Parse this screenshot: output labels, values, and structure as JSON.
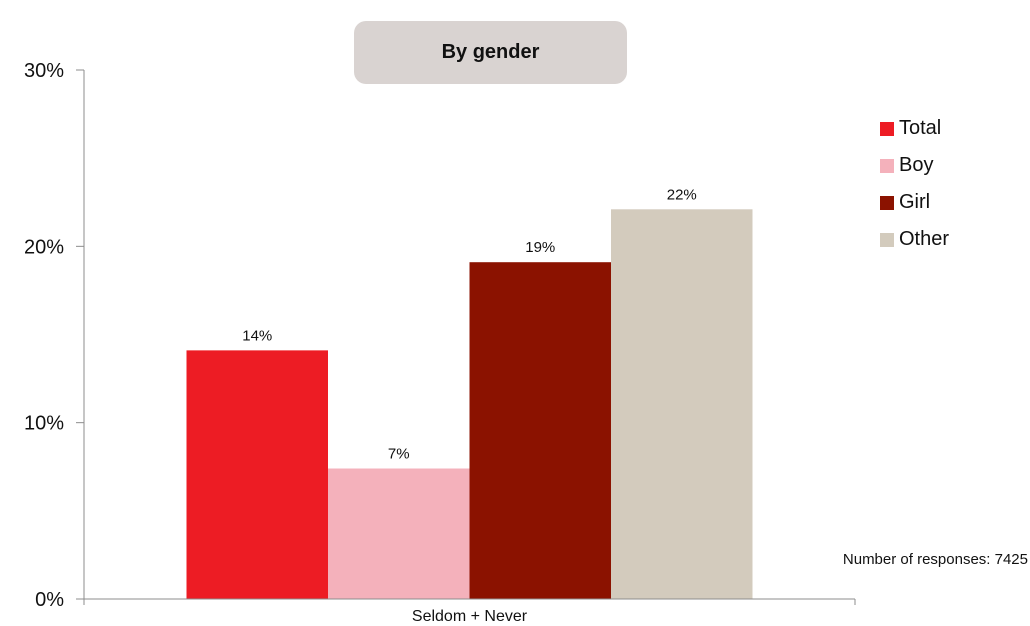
{
  "chart_data": {
    "type": "bar",
    "title": "By gender",
    "categories": [
      "Seldom + Never"
    ],
    "series": [
      {
        "name": "Total",
        "values": [
          14.1
        ],
        "label": "14%",
        "color": "#ed1c24"
      },
      {
        "name": "Boy",
        "values": [
          7.4
        ],
        "label": "7%",
        "color": "#f4b1bb"
      },
      {
        "name": "Girl",
        "values": [
          19.1
        ],
        "label": "19%",
        "color": "#8b1200"
      },
      {
        "name": "Other",
        "values": [
          22.1
        ],
        "label": "22%",
        "color": "#d3cbbd"
      }
    ],
    "yticks": [
      0,
      10,
      20,
      30
    ],
    "ytick_labels": [
      "0%",
      "10%",
      "20%",
      "30%"
    ],
    "ylim": [
      0,
      30
    ],
    "xlabel": "",
    "ylabel": "",
    "legend_position": "right",
    "grid": false
  },
  "note": "Number of responses: 7425",
  "colors": {
    "title_box": "#d9d3d1",
    "axis": "#8c8c8c"
  }
}
